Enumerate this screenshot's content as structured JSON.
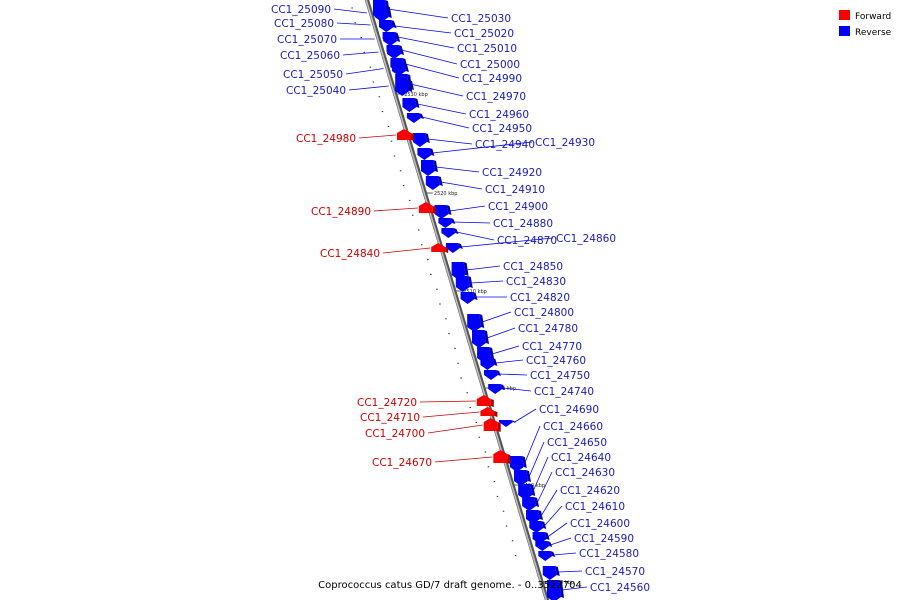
{
  "caption": "Coprococcus catus GD/7 draft genome. - 0..3522704",
  "colors": {
    "forward": "#ff0000",
    "reverse": "#0000ff",
    "forward_label": "#cc0000",
    "reverse_label": "#1a1ab8",
    "backbone": "#888888"
  },
  "legend": [
    {
      "label": "Forward",
      "color": "#ff0000"
    },
    {
      "label": "Reverse",
      "color": "#0000ff"
    }
  ],
  "ticks": [
    "2530 kbp",
    "2520 kbp",
    "2510 kbp",
    "2500 kbp",
    "2490 kbp",
    "2480 kbp"
  ],
  "genes": [
    {
      "id": "CC1_25090",
      "strand": "reverse"
    },
    {
      "id": "CC1_25080",
      "strand": "reverse"
    },
    {
      "id": "CC1_25070",
      "strand": "reverse"
    },
    {
      "id": "CC1_25060",
      "strand": "reverse"
    },
    {
      "id": "CC1_25050",
      "strand": "reverse"
    },
    {
      "id": "CC1_25040",
      "strand": "reverse"
    },
    {
      "id": "CC1_25030",
      "strand": "reverse"
    },
    {
      "id": "CC1_25020",
      "strand": "reverse"
    },
    {
      "id": "CC1_25010",
      "strand": "reverse"
    },
    {
      "id": "CC1_25000",
      "strand": "reverse"
    },
    {
      "id": "CC1_24990",
      "strand": "reverse"
    },
    {
      "id": "CC1_24970",
      "strand": "reverse"
    },
    {
      "id": "CC1_24960",
      "strand": "reverse"
    },
    {
      "id": "CC1_24950",
      "strand": "reverse"
    },
    {
      "id": "CC1_24940",
      "strand": "reverse"
    },
    {
      "id": "CC1_24930",
      "strand": "reverse"
    },
    {
      "id": "CC1_24920",
      "strand": "reverse"
    },
    {
      "id": "CC1_24910",
      "strand": "reverse"
    },
    {
      "id": "CC1_24900",
      "strand": "reverse"
    },
    {
      "id": "CC1_24880",
      "strand": "reverse"
    },
    {
      "id": "CC1_24870",
      "strand": "reverse"
    },
    {
      "id": "CC1_24860",
      "strand": "reverse"
    },
    {
      "id": "CC1_24850",
      "strand": "reverse"
    },
    {
      "id": "CC1_24830",
      "strand": "reverse"
    },
    {
      "id": "CC1_24820",
      "strand": "reverse"
    },
    {
      "id": "CC1_24800",
      "strand": "reverse"
    },
    {
      "id": "CC1_24780",
      "strand": "reverse"
    },
    {
      "id": "CC1_24770",
      "strand": "reverse"
    },
    {
      "id": "CC1_24760",
      "strand": "reverse"
    },
    {
      "id": "CC1_24750",
      "strand": "reverse"
    },
    {
      "id": "CC1_24740",
      "strand": "reverse"
    },
    {
      "id": "CC1_24690",
      "strand": "reverse"
    },
    {
      "id": "CC1_24660",
      "strand": "reverse"
    },
    {
      "id": "CC1_24650",
      "strand": "reverse"
    },
    {
      "id": "CC1_24640",
      "strand": "reverse"
    },
    {
      "id": "CC1_24630",
      "strand": "reverse"
    },
    {
      "id": "CC1_24620",
      "strand": "reverse"
    },
    {
      "id": "CC1_24610",
      "strand": "reverse"
    },
    {
      "id": "CC1_24600",
      "strand": "reverse"
    },
    {
      "id": "CC1_24590",
      "strand": "reverse"
    },
    {
      "id": "CC1_24580",
      "strand": "reverse"
    },
    {
      "id": "CC1_24570",
      "strand": "reverse"
    },
    {
      "id": "CC1_24560",
      "strand": "reverse"
    },
    {
      "id": "CC1_24980",
      "strand": "forward"
    },
    {
      "id": "CC1_24890",
      "strand": "forward"
    },
    {
      "id": "CC1_24840",
      "strand": "forward"
    },
    {
      "id": "CC1_24720",
      "strand": "forward"
    },
    {
      "id": "CC1_24710",
      "strand": "forward"
    },
    {
      "id": "CC1_24700",
      "strand": "forward"
    },
    {
      "id": "CC1_24670",
      "strand": "forward"
    }
  ]
}
